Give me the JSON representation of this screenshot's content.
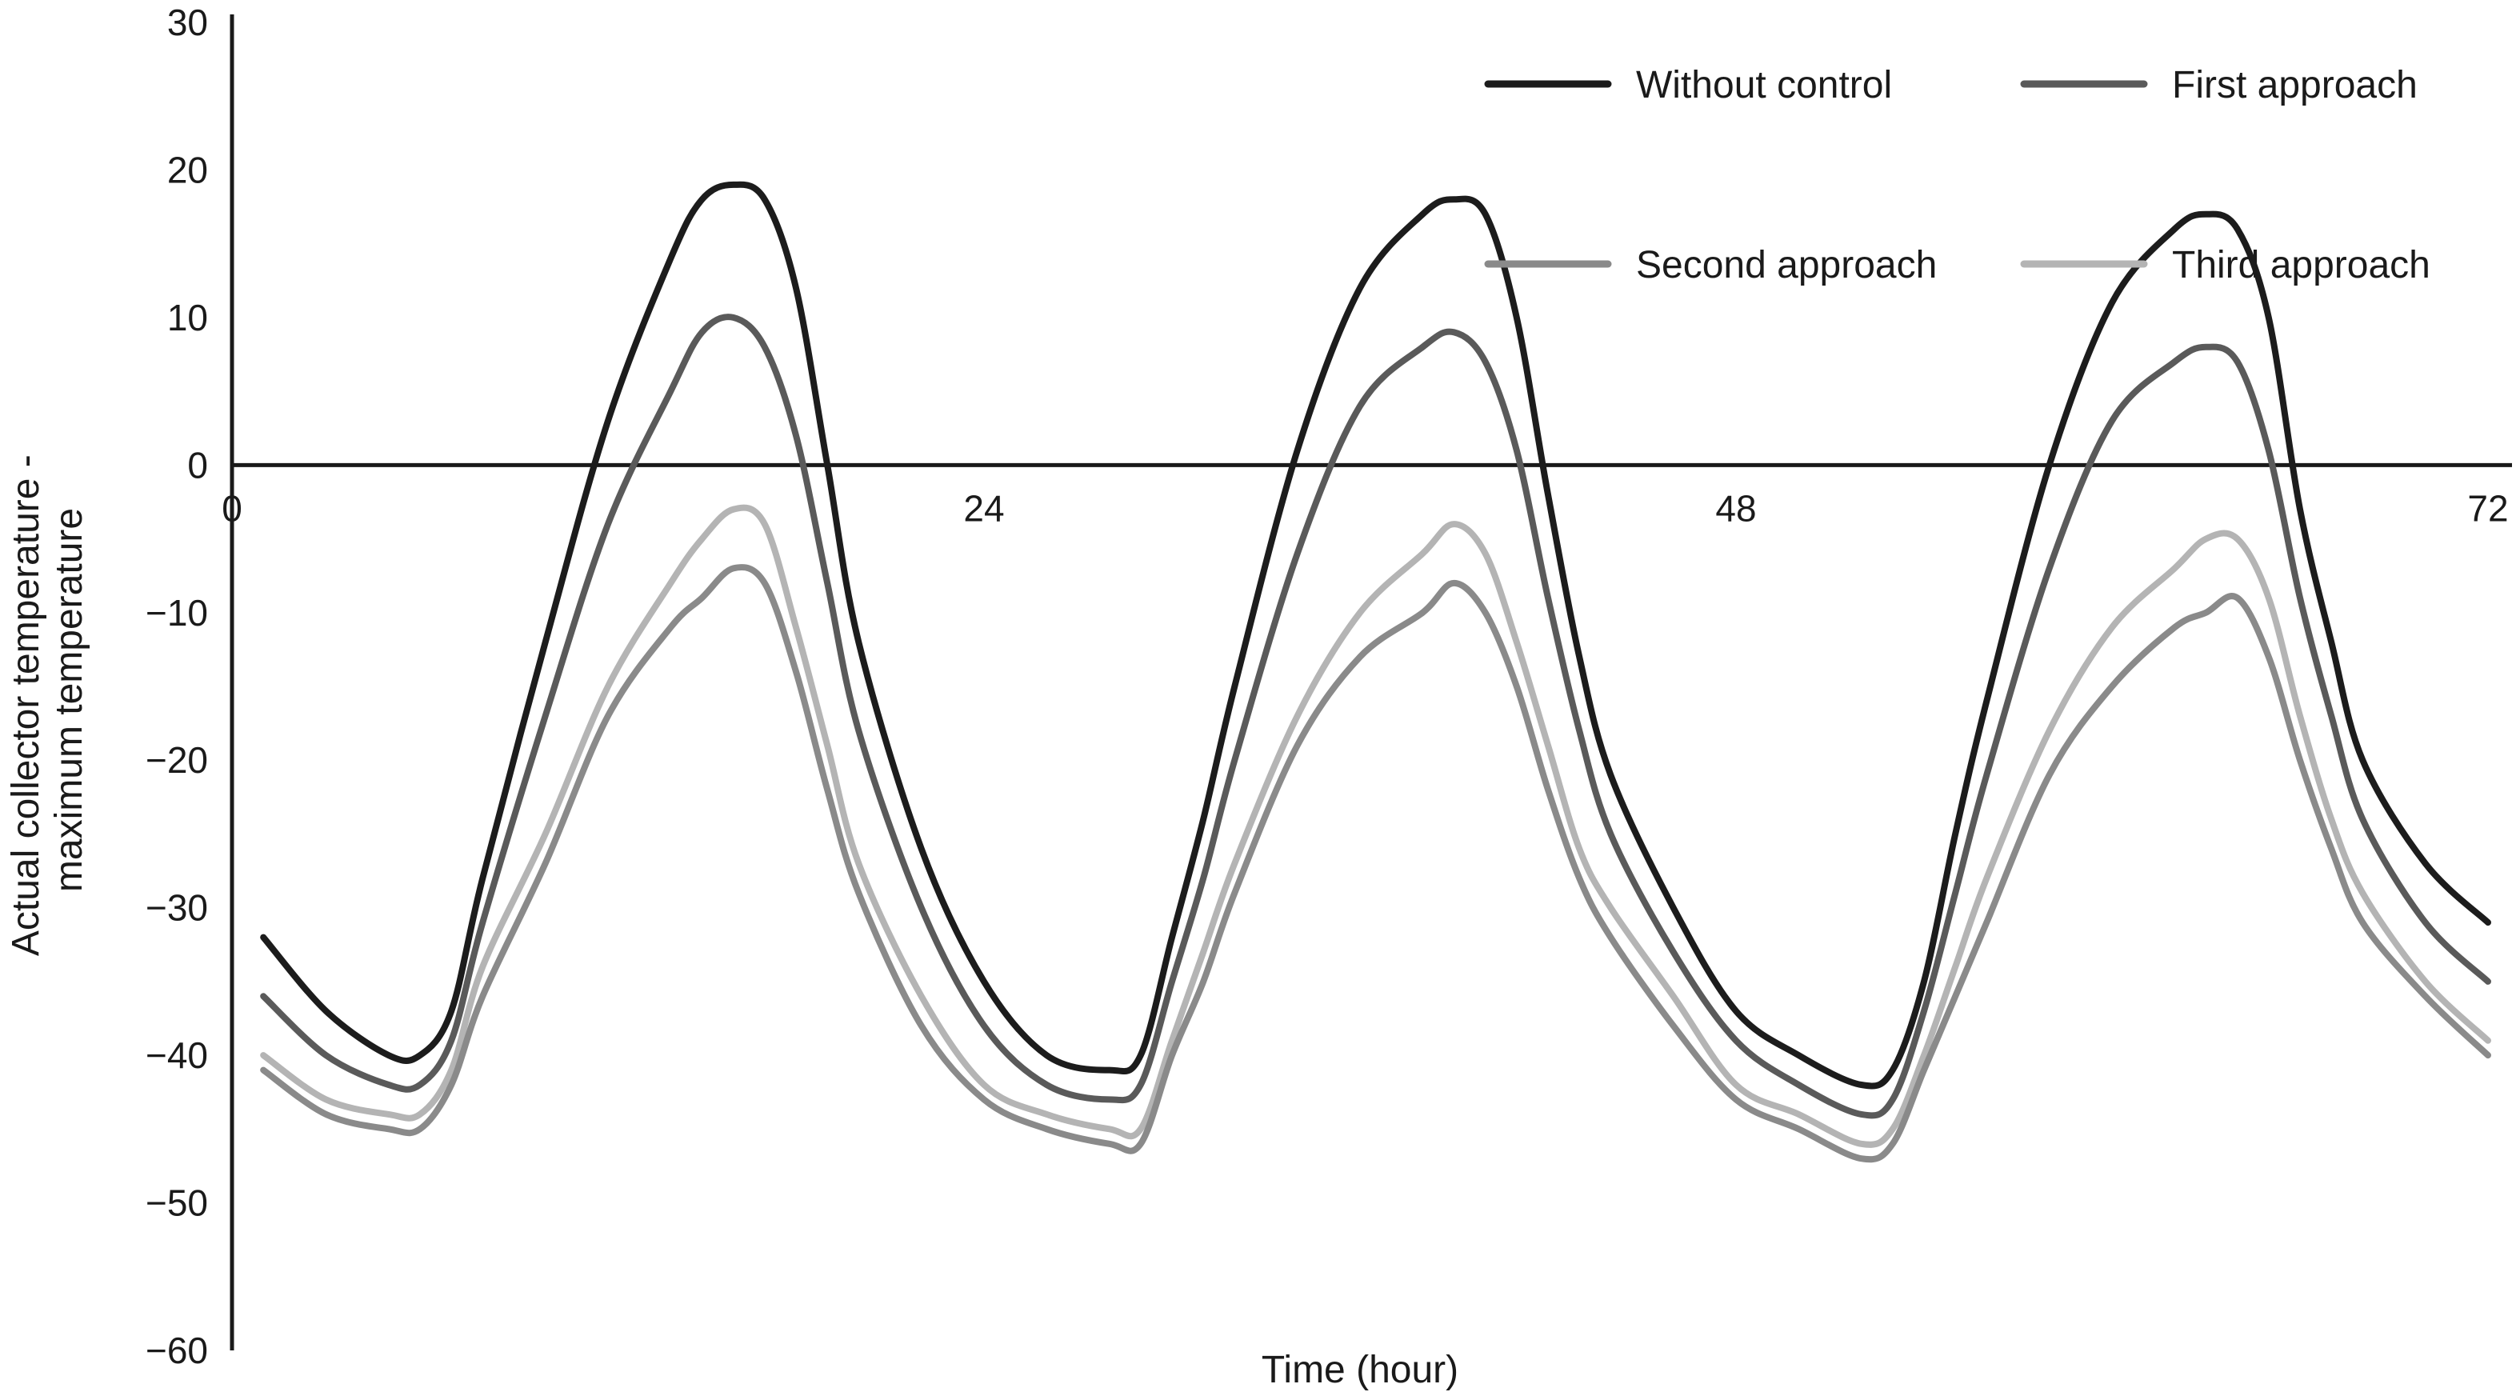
{
  "chart_data": {
    "type": "line",
    "title": "",
    "xlabel": "Time (hour)",
    "ylabel_lines": [
      "Actual collector temperature -",
      "maximum temperature"
    ],
    "xlim": [
      0,
      72
    ],
    "ylim": [
      -60,
      30
    ],
    "x_ticks": [
      0,
      24,
      48,
      72
    ],
    "y_ticks": [
      30,
      20,
      10,
      0,
      -10,
      -20,
      -30,
      -40,
      -50,
      -60
    ],
    "x_tick_labels": [
      "0",
      "24",
      "48",
      "72"
    ],
    "y_tick_labels": [
      "30",
      "20",
      "10",
      "0",
      "−10",
      "−20",
      "−30",
      "−40",
      "−50",
      "−60"
    ],
    "grid": false,
    "legend_position": "top-right",
    "x": [
      1,
      3,
      5,
      6,
      7,
      8,
      10,
      12,
      14,
      15,
      16,
      17,
      18,
      19,
      20,
      22,
      24,
      26,
      28,
      29,
      30,
      31,
      32,
      34,
      36,
      38,
      39,
      40,
      41,
      42,
      43,
      44,
      46,
      48,
      50,
      52,
      53,
      54,
      55,
      56,
      58,
      60,
      62,
      63,
      64,
      65,
      66,
      67,
      68,
      70,
      72
    ],
    "series": [
      {
        "name": "Without control",
        "color": "#1c1c1c",
        "values": [
          -32,
          -37,
          -40,
          -40,
          -37,
          -28,
          -12,
          3,
          14,
          18,
          19,
          18,
          12,
          0,
          -12,
          -26,
          -35,
          -40,
          -41,
          -40,
          -32,
          -24,
          -15,
          1,
          12,
          17,
          18,
          17,
          10,
          -2,
          -13,
          -21,
          -30,
          -37,
          -40,
          -42,
          -41,
          -35,
          -25,
          -16,
          0,
          11,
          16,
          17,
          16,
          10,
          -3,
          -12,
          -20,
          -27,
          -31
        ]
      },
      {
        "name": "First approach",
        "color": "#5a5a5a",
        "values": [
          -36,
          -40,
          -42,
          -42,
          -39,
          -31,
          -17,
          -4,
          5,
          9,
          10,
          8,
          2,
          -8,
          -18,
          -30,
          -38,
          -42,
          -43,
          -42,
          -35,
          -28,
          -20,
          -6,
          4,
          8,
          9,
          7,
          1,
          -9,
          -18,
          -25,
          -33,
          -39,
          -42,
          -44,
          -43,
          -37,
          -29,
          -21,
          -7,
          3,
          7,
          8,
          7,
          1,
          -9,
          -17,
          -24,
          -31,
          -35
        ]
      },
      {
        "name": "Second approach",
        "color": "#8a8a8a",
        "values": [
          -41,
          -44,
          -45,
          -45,
          -42,
          -36,
          -27,
          -17,
          -11,
          -9,
          -7,
          -8,
          -14,
          -22,
          -29,
          -38,
          -43,
          -45,
          -46,
          -46,
          -40,
          -35,
          -29,
          -19,
          -13,
          -10,
          -8,
          -10,
          -15,
          -22,
          -28,
          -32,
          -38,
          -43,
          -45,
          -47,
          -46,
          -41,
          -36,
          -31,
          -21,
          -15,
          -11,
          -10,
          -9,
          -13,
          -20,
          -26,
          -31,
          -36,
          -40
        ]
      },
      {
        "name": "Third approach",
        "color": "#b4b4b4",
        "values": [
          -40,
          -43,
          -44,
          -44,
          -41,
          -34,
          -25,
          -15,
          -8,
          -5,
          -3,
          -4,
          -11,
          -19,
          -27,
          -36,
          -42,
          -44,
          -45,
          -45,
          -39,
          -33,
          -27,
          -17,
          -10,
          -6,
          -4,
          -6,
          -12,
          -19,
          -26,
          -30,
          -36,
          -42,
          -44,
          -46,
          -45,
          -40,
          -34,
          -28,
          -18,
          -11,
          -7,
          -5,
          -5,
          -9,
          -17,
          -24,
          -29,
          -35,
          -39
        ]
      }
    ]
  }
}
